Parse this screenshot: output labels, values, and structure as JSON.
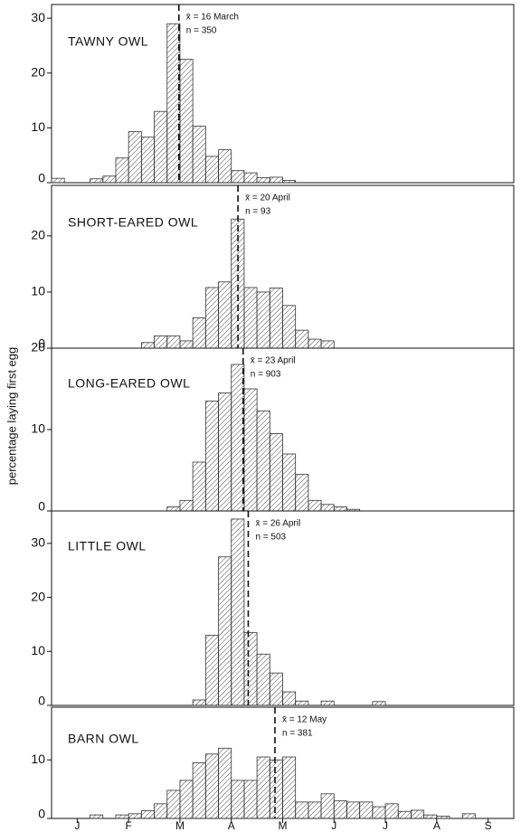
{
  "chart_data": [
    {
      "type": "histogram",
      "title": "TAWNY OWL",
      "mean": {
        "value": 2.48,
        "label": "x̄ = 16 March"
      },
      "n_label": "n = 350",
      "bins": [
        0,
        0.25,
        0.5,
        0.75,
        1,
        1.25,
        1.5,
        1.75,
        2,
        2.25,
        2.5,
        2.75,
        3,
        3.25,
        3.5,
        3.75,
        4,
        4.25,
        4.5,
        4.75,
        5,
        5.25,
        5.5,
        5.75,
        6,
        6.25,
        6.5,
        6.75,
        7,
        7.25,
        7.5,
        7.75,
        8,
        8.25,
        8.5,
        8.75,
        9
      ],
      "values": [
        0.8,
        0,
        0,
        0.7,
        1.2,
        4.5,
        9.3,
        8.3,
        13,
        29,
        22.5,
        10.3,
        4.8,
        6,
        2.2,
        1.8,
        0.9,
        1,
        0.4,
        0,
        0,
        0,
        0,
        0,
        0,
        0,
        0,
        0,
        0,
        0,
        0,
        0,
        0,
        0,
        0,
        0
      ],
      "color": "#333333",
      "xlim": [
        0,
        9
      ],
      "ylim": [
        0,
        32.5
      ],
      "yticks": [
        0,
        10,
        20,
        30
      ]
    },
    {
      "type": "histogram",
      "title": "SHORT-EARED OWL",
      "mean": {
        "value": 3.63,
        "label": "x̄ = 20 April"
      },
      "n_label": "n = 93",
      "bins": [
        0,
        0.25,
        0.5,
        0.75,
        1,
        1.25,
        1.5,
        1.75,
        2,
        2.25,
        2.5,
        2.75,
        3,
        3.25,
        3.5,
        3.75,
        4,
        4.25,
        4.5,
        4.75,
        5,
        5.25,
        5.5,
        5.75,
        6,
        6.25,
        6.5,
        6.75,
        7,
        7.25,
        7.5,
        7.75,
        8,
        8.25,
        8.5,
        8.75,
        9
      ],
      "values": [
        0,
        0,
        0,
        0,
        0,
        0,
        0,
        1,
        2.2,
        2.2,
        1.3,
        5.4,
        10.8,
        11.8,
        23,
        10.8,
        10,
        10.7,
        7.6,
        3.2,
        1.6,
        1.3,
        0,
        0,
        0,
        0,
        0,
        0,
        0,
        0,
        0,
        0,
        0,
        0,
        0,
        0
      ],
      "color": "#333333",
      "xlim": [
        0,
        9
      ],
      "ylim": [
        0,
        29
      ],
      "yticks": [
        0,
        10,
        20
      ]
    },
    {
      "type": "histogram",
      "title": "LONG-EARED OWL",
      "mean": {
        "value": 3.73,
        "label": "x̄ = 23 April"
      },
      "n_label": "n = 903",
      "ylabel": "percentage laying first egg",
      "bins": [
        0,
        0.25,
        0.5,
        0.75,
        1,
        1.25,
        1.5,
        1.75,
        2,
        2.25,
        2.5,
        2.75,
        3,
        3.25,
        3.5,
        3.75,
        4,
        4.25,
        4.5,
        4.75,
        5,
        5.25,
        5.5,
        5.75,
        6,
        6.25,
        6.5,
        6.75,
        7,
        7.25,
        7.5,
        7.75,
        8,
        8.25,
        8.5,
        8.75,
        9
      ],
      "values": [
        0,
        0,
        0,
        0,
        0,
        0,
        0,
        0,
        0,
        0.5,
        1.3,
        6,
        13.5,
        14.5,
        18,
        15,
        12.3,
        9.5,
        7,
        4.5,
        1.3,
        0.8,
        0.5,
        0.2,
        0,
        0,
        0,
        0,
        0,
        0,
        0,
        0,
        0,
        0,
        0,
        0
      ],
      "color": "#333333",
      "xlim": [
        0,
        9
      ],
      "ylim": [
        0,
        20
      ],
      "yticks": [
        0,
        10,
        20
      ]
    },
    {
      "type": "histogram",
      "title": "LITTLE OWL",
      "mean": {
        "value": 3.83,
        "label": "x̄ = 26 April"
      },
      "n_label": "n = 503",
      "bins": [
        0,
        0.25,
        0.5,
        0.75,
        1,
        1.25,
        1.5,
        1.75,
        2,
        2.25,
        2.5,
        2.75,
        3,
        3.25,
        3.5,
        3.75,
        4,
        4.25,
        4.5,
        4.75,
        5,
        5.25,
        5.5,
        5.75,
        6,
        6.25,
        6.5,
        6.75,
        7,
        7.25,
        7.5,
        7.75,
        8,
        8.25,
        8.5,
        8.75,
        9
      ],
      "values": [
        0,
        0,
        0,
        0,
        0,
        0,
        0,
        0,
        0,
        0,
        0,
        1,
        13,
        27.5,
        34.5,
        13.5,
        9.5,
        6,
        2.5,
        0.8,
        0,
        0.8,
        0,
        0,
        0,
        0.7,
        0,
        0,
        0,
        0,
        0,
        0,
        0,
        0,
        0,
        0
      ],
      "color": "#333333",
      "xlim": [
        0,
        9
      ],
      "ylim": [
        0,
        36
      ],
      "yticks": [
        0,
        10,
        20,
        30
      ]
    },
    {
      "type": "histogram",
      "title": "BARN OWL",
      "mean": {
        "value": 4.35,
        "label": "x̄ = 12 May"
      },
      "n_label": "n = 381",
      "bins": [
        0,
        0.25,
        0.5,
        0.75,
        1,
        1.25,
        1.5,
        1.75,
        2,
        2.25,
        2.5,
        2.75,
        3,
        3.25,
        3.5,
        3.75,
        4,
        4.25,
        4.5,
        4.75,
        5,
        5.25,
        5.5,
        5.75,
        6,
        6.25,
        6.5,
        6.75,
        7,
        7.25,
        7.5,
        7.75,
        8,
        8.25,
        8.5,
        8.75,
        9
      ],
      "values": [
        0,
        0,
        0,
        0.6,
        0,
        0.6,
        0.8,
        1.3,
        2.5,
        4.8,
        6.5,
        9.5,
        11,
        12,
        6.5,
        6.5,
        10.5,
        10,
        10.5,
        2.8,
        2.8,
        4.2,
        3,
        2.8,
        2.8,
        2,
        2.5,
        1.2,
        1.4,
        0.6,
        0.4,
        0,
        0.8,
        0,
        0,
        0
      ],
      "color": "#333333",
      "xlim": [
        0,
        9
      ],
      "ylim": [
        0,
        19
      ],
      "yticks": [
        0,
        10
      ],
      "xticks": [
        {
          "value": 0.5,
          "label": "J"
        },
        {
          "value": 1.5,
          "label": "F"
        },
        {
          "value": 2.5,
          "label": "M"
        },
        {
          "value": 3.5,
          "label": "A"
        },
        {
          "value": 4.5,
          "label": "M"
        },
        {
          "value": 5.5,
          "label": "J"
        },
        {
          "value": 6.5,
          "label": "J"
        },
        {
          "value": 7.5,
          "label": "A"
        },
        {
          "value": 8.5,
          "label": "S"
        }
      ]
    }
  ]
}
